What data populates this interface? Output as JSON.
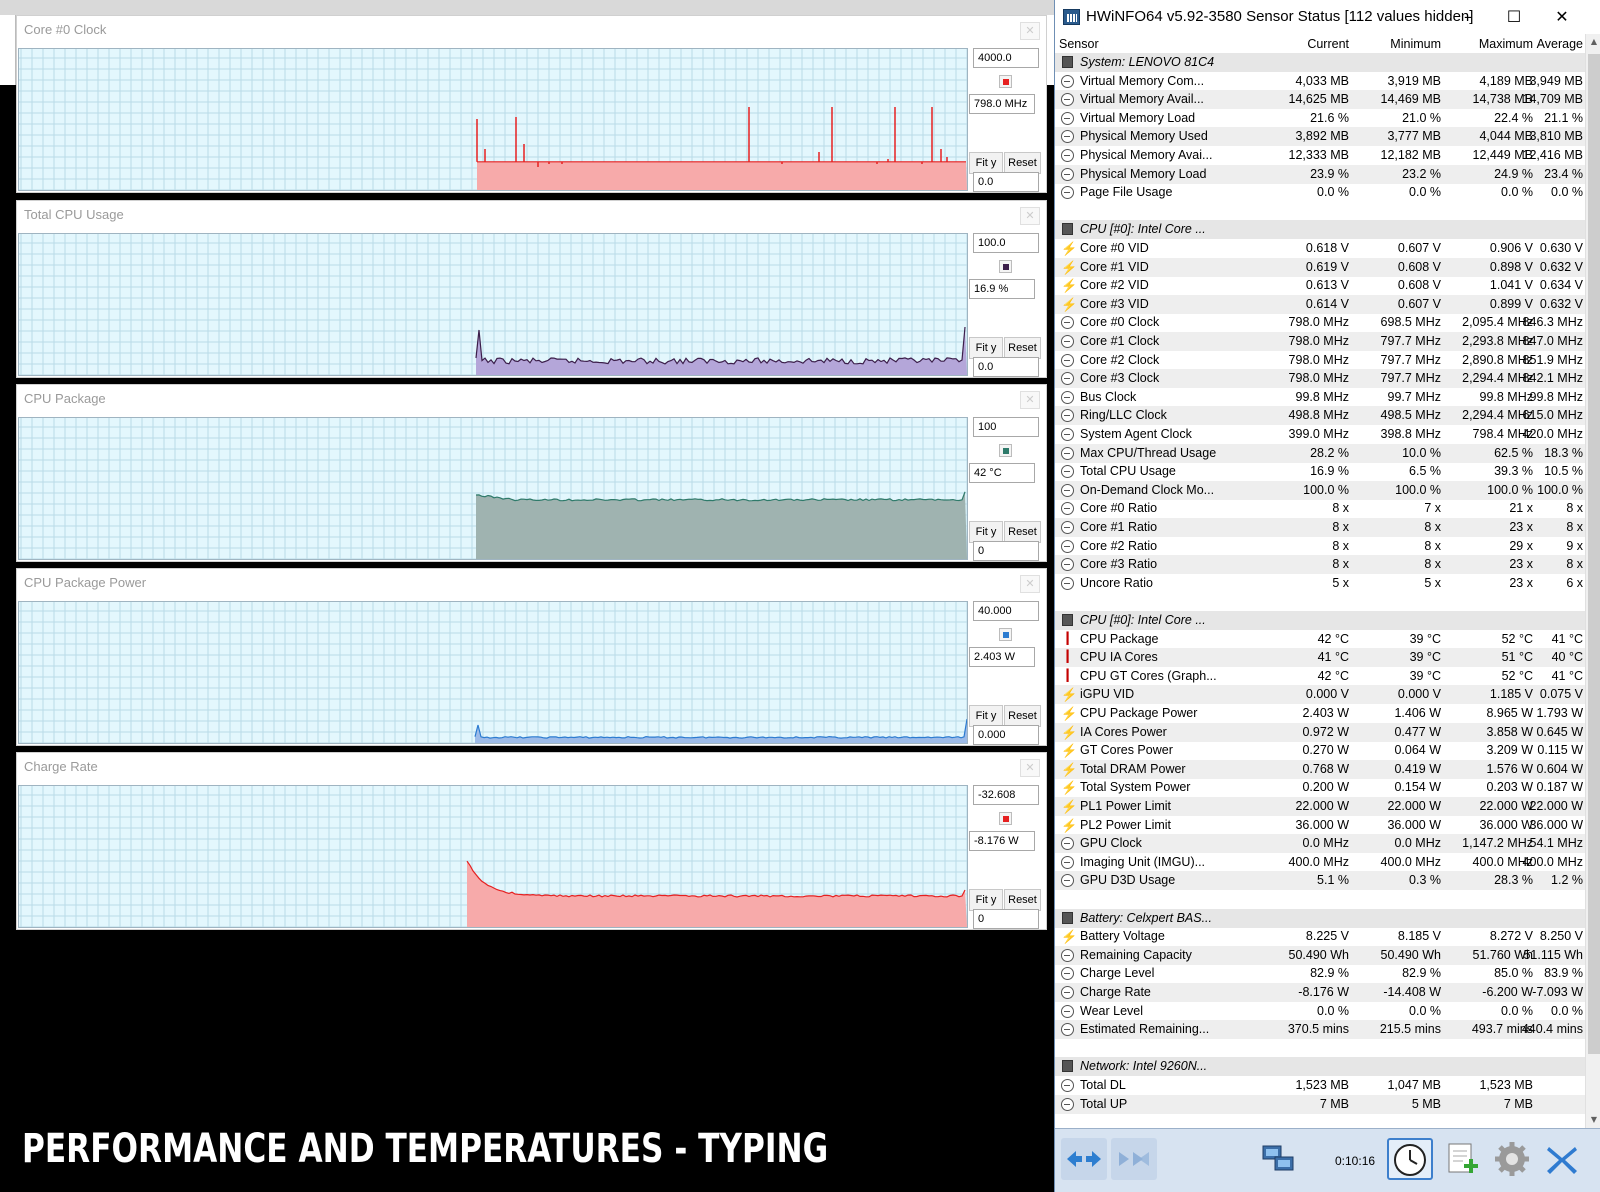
{
  "caption": "PERFORMANCE AND TEMPERATURES - TYPING",
  "graphs": [
    {
      "title": "Core #0 Clock",
      "max": "4000.0",
      "current": "798.0 MHz",
      "min": "0.0",
      "color": "#e62020",
      "fill": "#f7aaaa",
      "fit_label": "Fit y",
      "reset_label": "Reset",
      "level": 0.2,
      "spiky": true
    },
    {
      "title": "Total CPU Usage",
      "max": "100.0",
      "current": "16.9 %",
      "min": "0.0",
      "color": "#3b1e4a",
      "fill": "#b4a6d9",
      "fit_label": "Fit y",
      "reset_label": "Reset",
      "level": 0.1,
      "spiky": false
    },
    {
      "title": "CPU Package",
      "max": "100",
      "current": "42 °C",
      "min": "0",
      "color": "#2e7a6a",
      "fill": "#9fb3b0",
      "fit_label": "Fit y",
      "reset_label": "Reset",
      "level": 0.42,
      "spiky": false
    },
    {
      "title": "CPU Package Power",
      "max": "40.000",
      "current": "2.403 W",
      "min": "0.000",
      "color": "#2b7bd0",
      "fill": "#9dbbe8",
      "fit_label": "Fit y",
      "reset_label": "Reset",
      "level": 0.04,
      "spiky": false
    },
    {
      "title": "Charge Rate",
      "max": "-32.608",
      "current": "-8.176 W",
      "min": "0",
      "color": "#e62020",
      "fill": "#f7aaaa",
      "fit_label": "Fit y",
      "reset_label": "Reset",
      "level": 0.22,
      "spiky": false
    }
  ],
  "hwinfo": {
    "title": "HWiNFO64 v5.92-3580 Sensor Status [112 values hidden]",
    "controls": {
      "minimize": "–",
      "maximize": "☐",
      "close": "✕"
    },
    "columns": {
      "sensor": "Sensor",
      "current": "Current",
      "minimum": "Minimum",
      "maximum": "Maximum",
      "average": "Average"
    },
    "elapsed": "0:10:16",
    "rows": [
      {
        "kind": "group",
        "name": "System: LENOVO 81C4"
      },
      {
        "kind": "clk",
        "name": "Virtual Memory Com...",
        "cur": "4,033 MB",
        "min": "3,919 MB",
        "max": "4,189 MB",
        "avg": "3,949 MB"
      },
      {
        "kind": "clk",
        "name": "Virtual Memory Avail...",
        "cur": "14,625 MB",
        "min": "14,469 MB",
        "max": "14,738 MB",
        "avg": "14,709 MB"
      },
      {
        "kind": "clk",
        "name": "Virtual Memory Load",
        "cur": "21.6 %",
        "min": "21.0 %",
        "max": "22.4 %",
        "avg": "21.1 %"
      },
      {
        "kind": "clk",
        "name": "Physical Memory Used",
        "cur": "3,892 MB",
        "min": "3,777 MB",
        "max": "4,044 MB",
        "avg": "3,810 MB"
      },
      {
        "kind": "clk",
        "name": "Physical Memory Avai...",
        "cur": "12,333 MB",
        "min": "12,182 MB",
        "max": "12,449 MB",
        "avg": "12,416 MB"
      },
      {
        "kind": "clk",
        "name": "Physical Memory Load",
        "cur": "23.9 %",
        "min": "23.2 %",
        "max": "24.9 %",
        "avg": "23.4 %"
      },
      {
        "kind": "clk",
        "name": "Page File Usage",
        "cur": "0.0 %",
        "min": "0.0 %",
        "max": "0.0 %",
        "avg": "0.0 %"
      },
      {
        "kind": "blank"
      },
      {
        "kind": "group",
        "name": "CPU [#0]: Intel Core ..."
      },
      {
        "kind": "volt",
        "name": "Core #0 VID",
        "cur": "0.618 V",
        "min": "0.607 V",
        "max": "0.906 V",
        "avg": "0.630 V"
      },
      {
        "kind": "volt",
        "name": "Core #1 VID",
        "cur": "0.619 V",
        "min": "0.608 V",
        "max": "0.898 V",
        "avg": "0.632 V"
      },
      {
        "kind": "volt",
        "name": "Core #2 VID",
        "cur": "0.613 V",
        "min": "0.608 V",
        "max": "1.041 V",
        "avg": "0.634 V"
      },
      {
        "kind": "volt",
        "name": "Core #3 VID",
        "cur": "0.614 V",
        "min": "0.607 V",
        "max": "0.899 V",
        "avg": "0.632 V"
      },
      {
        "kind": "clk",
        "name": "Core #0 Clock",
        "cur": "798.0 MHz",
        "min": "698.5 MHz",
        "max": "2,095.4 MHz",
        "avg": "846.3 MHz"
      },
      {
        "kind": "clk",
        "name": "Core #1 Clock",
        "cur": "798.0 MHz",
        "min": "797.7 MHz",
        "max": "2,293.8 MHz",
        "avg": "847.0 MHz"
      },
      {
        "kind": "clk",
        "name": "Core #2 Clock",
        "cur": "798.0 MHz",
        "min": "797.7 MHz",
        "max": "2,890.8 MHz",
        "avg": "851.9 MHz"
      },
      {
        "kind": "clk",
        "name": "Core #3 Clock",
        "cur": "798.0 MHz",
        "min": "797.7 MHz",
        "max": "2,294.4 MHz",
        "avg": "842.1 MHz"
      },
      {
        "kind": "clk",
        "name": "Bus Clock",
        "cur": "99.8 MHz",
        "min": "99.7 MHz",
        "max": "99.8 MHz",
        "avg": "99.8 MHz"
      },
      {
        "kind": "clk",
        "name": "Ring/LLC Clock",
        "cur": "498.8 MHz",
        "min": "498.5 MHz",
        "max": "2,294.4 MHz",
        "avg": "615.0 MHz"
      },
      {
        "kind": "clk",
        "name": "System Agent Clock",
        "cur": "399.0 MHz",
        "min": "398.8 MHz",
        "max": "798.4 MHz",
        "avg": "420.0 MHz"
      },
      {
        "kind": "clk",
        "name": "Max CPU/Thread Usage",
        "cur": "28.2 %",
        "min": "10.0 %",
        "max": "62.5 %",
        "avg": "18.3 %"
      },
      {
        "kind": "clk",
        "name": "Total CPU Usage",
        "cur": "16.9 %",
        "min": "6.5 %",
        "max": "39.3 %",
        "avg": "10.5 %"
      },
      {
        "kind": "clk",
        "name": "On-Demand Clock Mo...",
        "cur": "100.0 %",
        "min": "100.0 %",
        "max": "100.0 %",
        "avg": "100.0 %"
      },
      {
        "kind": "clk",
        "name": "Core #0 Ratio",
        "cur": "8 x",
        "min": "7 x",
        "max": "21 x",
        "avg": "8 x"
      },
      {
        "kind": "clk",
        "name": "Core #1 Ratio",
        "cur": "8 x",
        "min": "8 x",
        "max": "23 x",
        "avg": "8 x"
      },
      {
        "kind": "clk",
        "name": "Core #2 Ratio",
        "cur": "8 x",
        "min": "8 x",
        "max": "29 x",
        "avg": "9 x"
      },
      {
        "kind": "clk",
        "name": "Core #3 Ratio",
        "cur": "8 x",
        "min": "8 x",
        "max": "23 x",
        "avg": "8 x"
      },
      {
        "kind": "clk",
        "name": "Uncore Ratio",
        "cur": "5 x",
        "min": "5 x",
        "max": "23 x",
        "avg": "6 x"
      },
      {
        "kind": "blank"
      },
      {
        "kind": "group",
        "name": "CPU [#0]: Intel Core ..."
      },
      {
        "kind": "temp",
        "name": "CPU Package",
        "cur": "42 °C",
        "min": "39 °C",
        "max": "52 °C",
        "avg": "41 °C"
      },
      {
        "kind": "temp",
        "name": "CPU IA Cores",
        "cur": "41 °C",
        "min": "39 °C",
        "max": "51 °C",
        "avg": "40 °C"
      },
      {
        "kind": "temp",
        "name": "CPU GT Cores (Graph...",
        "cur": "42 °C",
        "min": "39 °C",
        "max": "52 °C",
        "avg": "41 °C"
      },
      {
        "kind": "volt",
        "name": "iGPU VID",
        "cur": "0.000 V",
        "min": "0.000 V",
        "max": "1.185 V",
        "avg": "0.075 V"
      },
      {
        "kind": "volt",
        "name": "CPU Package Power",
        "cur": "2.403 W",
        "min": "1.406 W",
        "max": "8.965 W",
        "avg": "1.793 W"
      },
      {
        "kind": "volt",
        "name": "IA Cores Power",
        "cur": "0.972 W",
        "min": "0.477 W",
        "max": "3.858 W",
        "avg": "0.645 W"
      },
      {
        "kind": "volt",
        "name": "GT Cores Power",
        "cur": "0.270 W",
        "min": "0.064 W",
        "max": "3.209 W",
        "avg": "0.115 W"
      },
      {
        "kind": "volt",
        "name": "Total DRAM Power",
        "cur": "0.768 W",
        "min": "0.419 W",
        "max": "1.576 W",
        "avg": "0.604 W"
      },
      {
        "kind": "volt",
        "name": "Total System Power",
        "cur": "0.200 W",
        "min": "0.154 W",
        "max": "0.203 W",
        "avg": "0.187 W"
      },
      {
        "kind": "volt",
        "name": "PL1 Power Limit",
        "cur": "22.000 W",
        "min": "22.000 W",
        "max": "22.000 W",
        "avg": "22.000 W"
      },
      {
        "kind": "volt",
        "name": "PL2 Power Limit",
        "cur": "36.000 W",
        "min": "36.000 W",
        "max": "36.000 W",
        "avg": "36.000 W"
      },
      {
        "kind": "clk",
        "name": "GPU Clock",
        "cur": "0.0 MHz",
        "min": "0.0 MHz",
        "max": "1,147.2 MHz",
        "avg": "54.1 MHz"
      },
      {
        "kind": "clk",
        "name": "Imaging Unit (IMGU)...",
        "cur": "400.0 MHz",
        "min": "400.0 MHz",
        "max": "400.0 MHz",
        "avg": "400.0 MHz"
      },
      {
        "kind": "clk",
        "name": "GPU D3D Usage",
        "cur": "5.1 %",
        "min": "0.3 %",
        "max": "28.3 %",
        "avg": "1.2 %"
      },
      {
        "kind": "blank"
      },
      {
        "kind": "group",
        "name": "Battery: Celxpert BAS..."
      },
      {
        "kind": "volt",
        "name": "Battery Voltage",
        "cur": "8.225 V",
        "min": "8.185 V",
        "max": "8.272 V",
        "avg": "8.250 V"
      },
      {
        "kind": "clk",
        "name": "Remaining Capacity",
        "cur": "50.490 Wh",
        "min": "50.490 Wh",
        "max": "51.760 Wh",
        "avg": "51.115 Wh"
      },
      {
        "kind": "clk",
        "name": "Charge Level",
        "cur": "82.9 %",
        "min": "82.9 %",
        "max": "85.0 %",
        "avg": "83.9 %"
      },
      {
        "kind": "clk",
        "name": "Charge Rate",
        "cur": "-8.176 W",
        "min": "-14.408 W",
        "max": "-6.200 W",
        "avg": "-7.093 W"
      },
      {
        "kind": "clk",
        "name": "Wear Level",
        "cur": "0.0 %",
        "min": "0.0 %",
        "max": "0.0 %",
        "avg": "0.0 %"
      },
      {
        "kind": "clk",
        "name": "Estimated Remaining...",
        "cur": "370.5 mins",
        "min": "215.5 mins",
        "max": "493.7 mins",
        "avg": "440.4 mins"
      },
      {
        "kind": "blank"
      },
      {
        "kind": "group",
        "name": "Network: Intel 9260N..."
      },
      {
        "kind": "clk",
        "name": "Total DL",
        "cur": "1,523 MB",
        "min": "1,047 MB",
        "max": "1,523 MB",
        "avg": ""
      },
      {
        "kind": "clk",
        "name": "Total UP",
        "cur": "7 MB",
        "min": "5 MB",
        "max": "7 MB",
        "avg": ""
      }
    ]
  }
}
